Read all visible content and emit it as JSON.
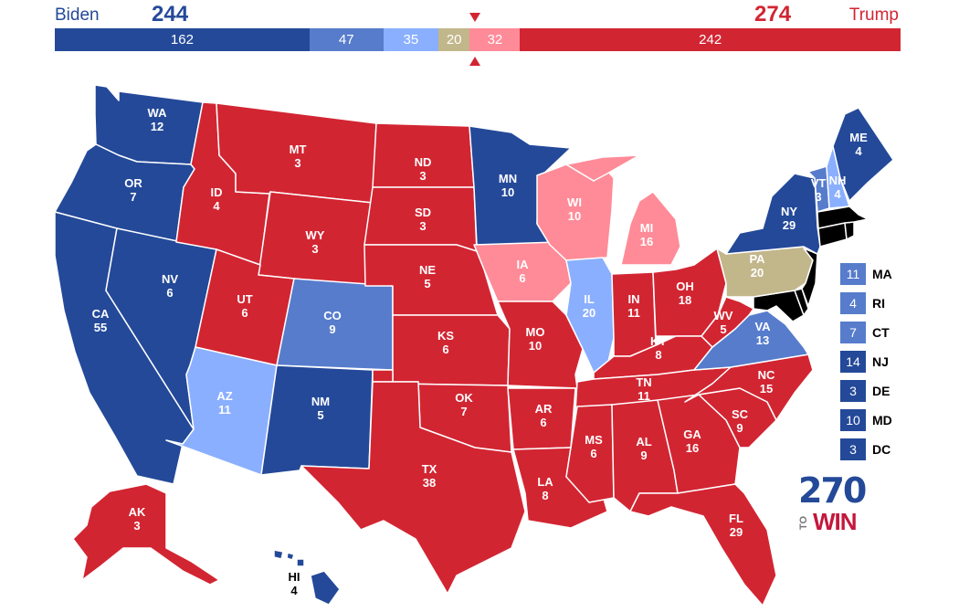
{
  "candidates": {
    "biden": {
      "name": "Biden",
      "total": "244",
      "color": "#244999"
    },
    "trump": {
      "name": "Trump",
      "total": "274",
      "color": "#d22532"
    }
  },
  "bar": [
    {
      "id": "safe-d",
      "value": 162,
      "label": "162",
      "color": "#244999"
    },
    {
      "id": "likely-d",
      "value": 47,
      "label": "47",
      "color": "#577ccc"
    },
    {
      "id": "lean-d",
      "value": 35,
      "label": "35",
      "color": "#8aafff"
    },
    {
      "id": "tossup",
      "value": 20,
      "label": "20",
      "color": "#c2b68b"
    },
    {
      "id": "lean-r",
      "value": 32,
      "label": "32",
      "color": "#ff8b98"
    },
    {
      "id": "safe-r",
      "value": 242,
      "label": "242",
      "color": "#d22532"
    }
  ],
  "colors": {
    "safe_d": "#244999",
    "likely_d": "#577ccc",
    "lean_d": "#8aafff",
    "tossup": "#c2b68b",
    "lean_r": "#ff8b98",
    "safe_r": "#d22532"
  },
  "states": [
    {
      "code": "WA",
      "ev": "12",
      "cat": "safe_d"
    },
    {
      "code": "OR",
      "ev": "7",
      "cat": "safe_d"
    },
    {
      "code": "CA",
      "ev": "55",
      "cat": "safe_d"
    },
    {
      "code": "NV",
      "ev": "6",
      "cat": "safe_d"
    },
    {
      "code": "ID",
      "ev": "4",
      "cat": "safe_r"
    },
    {
      "code": "MT",
      "ev": "3",
      "cat": "safe_r"
    },
    {
      "code": "WY",
      "ev": "3",
      "cat": "safe_r"
    },
    {
      "code": "UT",
      "ev": "6",
      "cat": "safe_r"
    },
    {
      "code": "AZ",
      "ev": "11",
      "cat": "lean_d"
    },
    {
      "code": "CO",
      "ev": "9",
      "cat": "likely_d"
    },
    {
      "code": "NM",
      "ev": "5",
      "cat": "safe_d"
    },
    {
      "code": "ND",
      "ev": "3",
      "cat": "safe_r"
    },
    {
      "code": "SD",
      "ev": "3",
      "cat": "safe_r"
    },
    {
      "code": "NE",
      "ev": "5",
      "cat": "safe_r"
    },
    {
      "code": "KS",
      "ev": "6",
      "cat": "safe_r"
    },
    {
      "code": "OK",
      "ev": "7",
      "cat": "safe_r"
    },
    {
      "code": "TX",
      "ev": "38",
      "cat": "safe_r"
    },
    {
      "code": "MN",
      "ev": "10",
      "cat": "safe_d"
    },
    {
      "code": "IA",
      "ev": "6",
      "cat": "lean_r"
    },
    {
      "code": "MO",
      "ev": "10",
      "cat": "safe_r"
    },
    {
      "code": "AR",
      "ev": "6",
      "cat": "safe_r"
    },
    {
      "code": "LA",
      "ev": "8",
      "cat": "safe_r"
    },
    {
      "code": "WI",
      "ev": "10",
      "cat": "lean_r"
    },
    {
      "code": "IL",
      "ev": "20",
      "cat": "lean_d"
    },
    {
      "code": "MI",
      "ev": "16",
      "cat": "lean_r"
    },
    {
      "code": "IN",
      "ev": "11",
      "cat": "safe_r"
    },
    {
      "code": "OH",
      "ev": "18",
      "cat": "safe_r"
    },
    {
      "code": "KY",
      "ev": "8",
      "cat": "safe_r"
    },
    {
      "code": "TN",
      "ev": "11",
      "cat": "safe_r"
    },
    {
      "code": "MS",
      "ev": "6",
      "cat": "safe_r"
    },
    {
      "code": "AL",
      "ev": "9",
      "cat": "safe_r"
    },
    {
      "code": "GA",
      "ev": "16",
      "cat": "safe_r"
    },
    {
      "code": "FL",
      "ev": "29",
      "cat": "safe_r"
    },
    {
      "code": "SC",
      "ev": "9",
      "cat": "safe_r"
    },
    {
      "code": "NC",
      "ev": "15",
      "cat": "safe_r"
    },
    {
      "code": "VA",
      "ev": "13",
      "cat": "likely_d"
    },
    {
      "code": "WV",
      "ev": "5",
      "cat": "safe_r"
    },
    {
      "code": "PA",
      "ev": "20",
      "cat": "tossup"
    },
    {
      "code": "NY",
      "ev": "29",
      "cat": "safe_d"
    },
    {
      "code": "VT",
      "ev": "3",
      "cat": "likely_d"
    },
    {
      "code": "NH",
      "ev": "4",
      "cat": "lean_d"
    },
    {
      "code": "ME",
      "ev": "4",
      "cat": "safe_d"
    },
    {
      "code": "AK",
      "ev": "3",
      "cat": "safe_r"
    },
    {
      "code": "HI",
      "ev": "4",
      "cat": "safe_d"
    }
  ],
  "small_states": [
    {
      "code": "MA",
      "ev": "11",
      "cat": "likely_d"
    },
    {
      "code": "RI",
      "ev": "4",
      "cat": "likely_d"
    },
    {
      "code": "CT",
      "ev": "7",
      "cat": "likely_d"
    },
    {
      "code": "NJ",
      "ev": "14",
      "cat": "safe_d"
    },
    {
      "code": "DE",
      "ev": "3",
      "cat": "safe_d"
    },
    {
      "code": "MD",
      "ev": "10",
      "cat": "safe_d"
    },
    {
      "code": "DC",
      "ev": "3",
      "cat": "safe_d"
    }
  ],
  "logo": {
    "number": "270",
    "to": "TO",
    "win": "WIN"
  }
}
